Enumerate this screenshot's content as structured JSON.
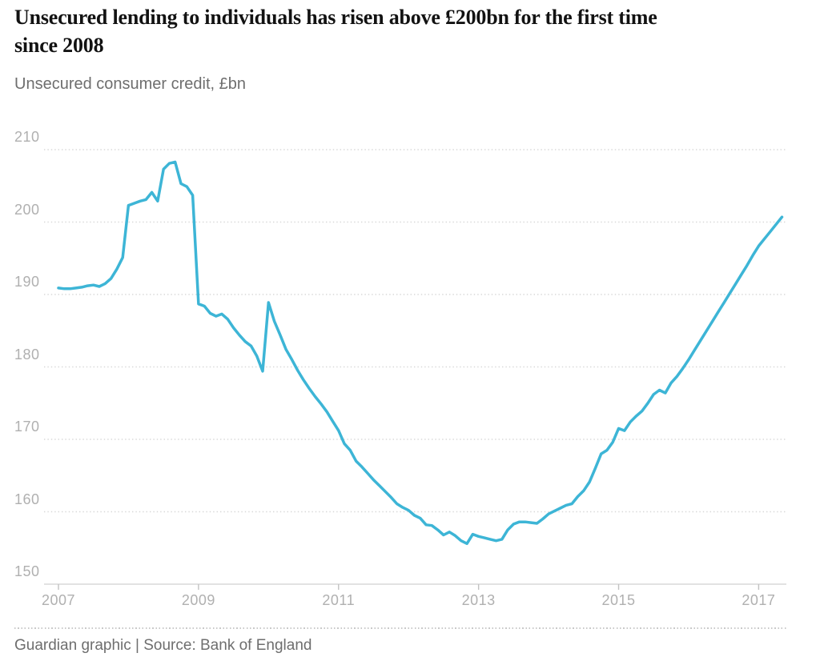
{
  "page": {
    "title": "Unsecured lending to individuals has risen above £200bn for the first time\nsince 2008",
    "subtitle": "Unsecured consumer credit, £bn",
    "footer": "Guardian graphic | Source: Bank of England"
  },
  "colors": {
    "line": "#3db5d6",
    "title_text": "#121212",
    "subtitle_text": "#6e6e6e",
    "axis_label_text": "#b0b0b0",
    "gridline": "#d8d8d8",
    "background": "#ffffff"
  },
  "chart_data": {
    "type": "line",
    "title": "Unsecured lending to individuals has risen above £200bn for the first time since 2008",
    "subtitle": "Unsecured consumer credit, £bn",
    "source": "Guardian graphic | Source: Bank of England",
    "unit": "£bn",
    "frequency": "monthly",
    "x_start": "2007-01",
    "x_end": "2017-05",
    "x_ticks": [
      2007,
      2009,
      2011,
      2013,
      2015,
      2017
    ],
    "y_ticks": [
      210,
      200,
      190,
      180,
      170,
      160,
      150
    ],
    "ylim": [
      150,
      210
    ],
    "grid": "horizontal-dotted",
    "legend": "none",
    "series": [
      {
        "name": "Unsecured consumer credit (£bn)",
        "values": [
          190.9,
          190.8,
          190.8,
          190.9,
          191.0,
          191.2,
          191.3,
          191.1,
          191.5,
          192.2,
          193.5,
          195.1,
          202.3,
          202.6,
          202.9,
          203.1,
          204.1,
          202.9,
          207.3,
          208.1,
          208.3,
          205.3,
          204.9,
          203.7,
          188.7,
          188.4,
          187.4,
          187.0,
          187.3,
          186.6,
          185.4,
          184.4,
          183.5,
          182.9,
          181.5,
          179.4,
          188.9,
          186.3,
          184.4,
          182.4,
          181.0,
          179.5,
          178.2,
          177.0,
          175.9,
          174.9,
          173.8,
          172.5,
          171.2,
          169.4,
          168.5,
          167.0,
          166.2,
          165.3,
          164.4,
          163.6,
          162.8,
          162.0,
          161.1,
          160.6,
          160.2,
          159.5,
          159.1,
          158.2,
          158.1,
          157.5,
          156.8,
          157.2,
          156.7,
          156.0,
          155.6,
          156.9,
          156.6,
          156.4,
          156.2,
          156.0,
          156.2,
          157.5,
          158.3,
          158.6,
          158.6,
          158.5,
          158.4,
          159.0,
          159.7,
          160.1,
          160.5,
          160.9,
          161.1,
          162.1,
          162.9,
          164.1,
          166.0,
          168.0,
          168.5,
          169.6,
          171.5,
          171.2,
          172.4,
          173.2,
          173.9,
          175.0,
          176.2,
          176.8,
          176.4,
          177.8,
          178.7,
          179.8,
          181.0,
          182.3,
          183.6,
          184.9,
          186.2,
          187.5,
          188.8,
          190.1,
          191.4,
          192.7,
          194.0,
          195.4,
          196.7,
          197.7,
          198.7,
          199.7,
          200.7
        ]
      }
    ]
  }
}
